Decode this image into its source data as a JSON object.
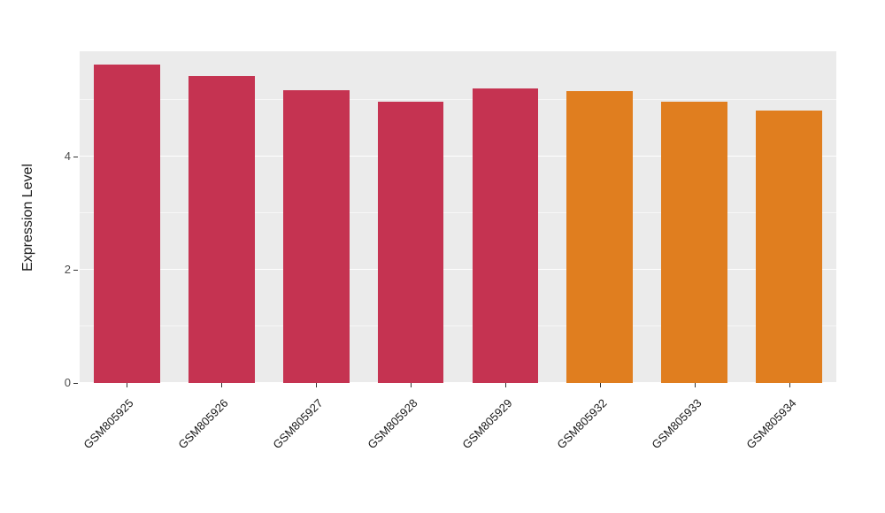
{
  "chart_data": {
    "type": "bar",
    "title": "",
    "xlabel": "",
    "ylabel": "Expression Level",
    "categories": [
      "GSM805925",
      "GSM805926",
      "GSM805927",
      "GSM805928",
      "GSM805929",
      "GSM805932",
      "GSM805933",
      "GSM805934"
    ],
    "values": [
      5.62,
      5.43,
      5.17,
      4.97,
      5.2,
      5.16,
      4.97,
      4.81
    ],
    "bar_colors": [
      "#C53351",
      "#C53351",
      "#C53351",
      "#C53351",
      "#C53351",
      "#E07E1F",
      "#E07E1F",
      "#E07E1F"
    ],
    "ylim": [
      0,
      5.86
    ],
    "yticks": [
      0,
      2,
      4
    ],
    "minor_ticks": [
      1,
      3,
      5
    ],
    "panel_background": "#EBEBEB",
    "gridline_color": "#FFFFFF",
    "legend_position": "none",
    "grid": "on"
  }
}
